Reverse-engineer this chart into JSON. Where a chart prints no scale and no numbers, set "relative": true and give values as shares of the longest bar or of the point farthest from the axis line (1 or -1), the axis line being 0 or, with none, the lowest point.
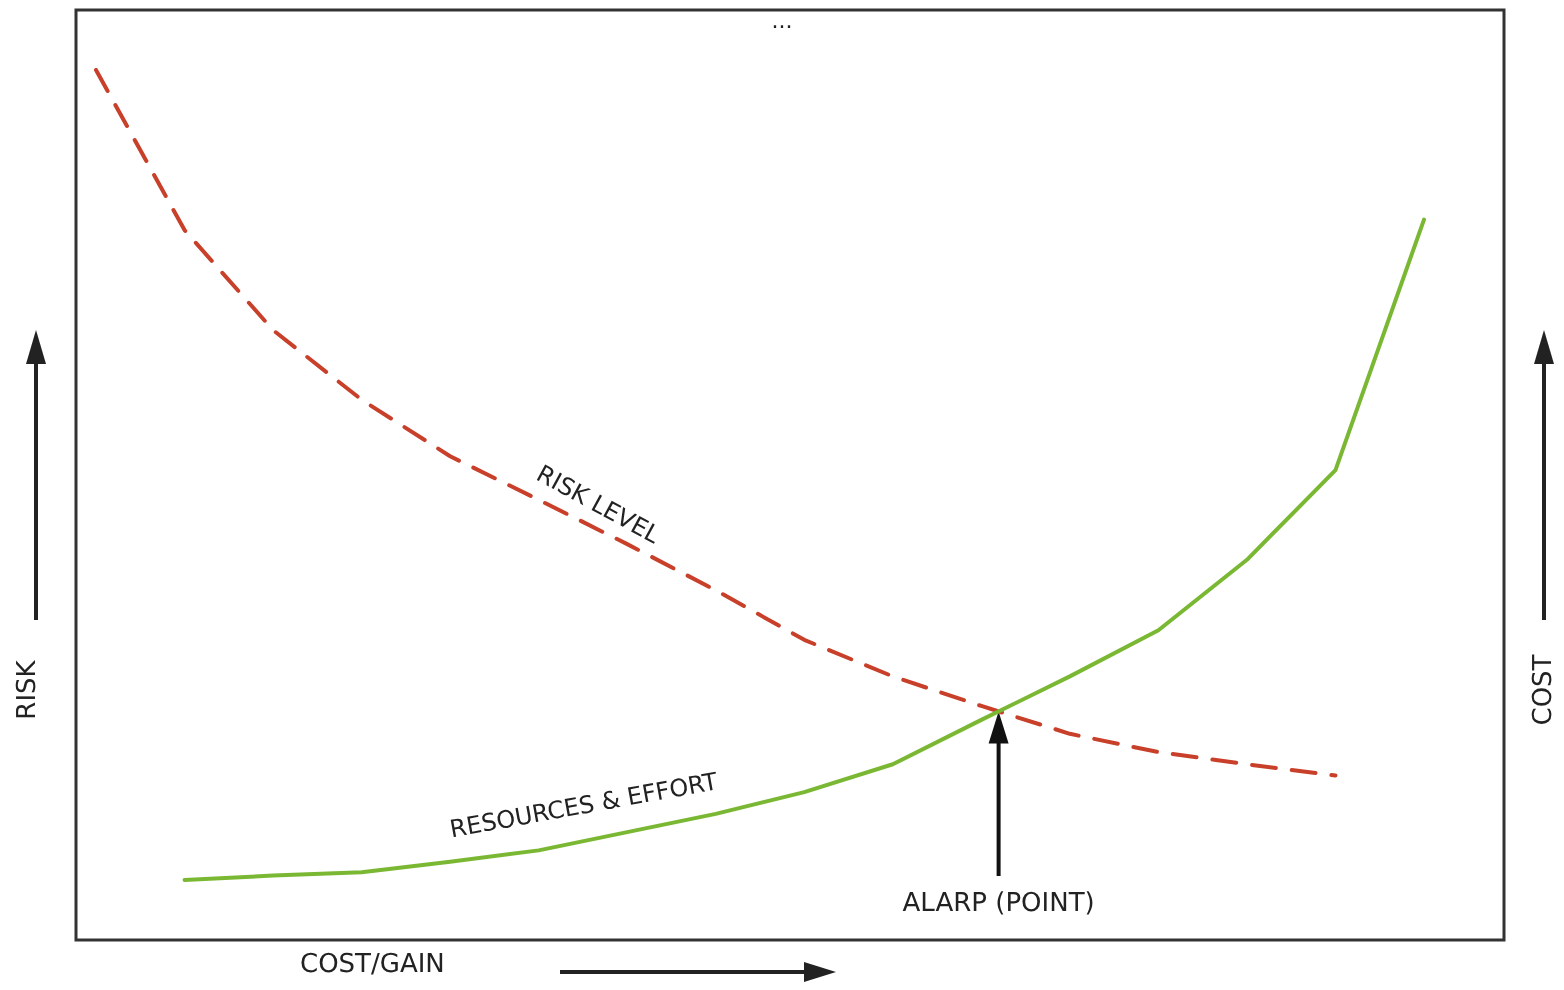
{
  "chart_data": {
    "type": "line",
    "title": "...",
    "xlabel": "COST/GAIN",
    "ylabel": "RISK",
    "y2label": "COST",
    "relative": true,
    "legend": false,
    "grid": false,
    "marker": "none",
    "categories": [
      null,
      null,
      null,
      null,
      null,
      null,
      null,
      null,
      null,
      null,
      null,
      null,
      null,
      null,
      null,
      null
    ],
    "series": [
      {
        "name": "RISK LEVEL",
        "color": "#c8402a",
        "line_style": "dashed",
        "values": [
          1,
          0.816,
          0.701,
          0.621,
          0.556,
          0.506,
          0.455,
          0.402,
          0.345,
          0.303,
          0.269,
          0.237,
          0.216,
          0.202,
          0.189,
          null
        ]
      },
      {
        "name": "RESOURCES & EFFORT",
        "color": "#7ab833",
        "line_style": "solid",
        "values": [
          null,
          0.069,
          0.074,
          0.078,
          0.09,
          0.103,
          0.124,
          0.145,
          0.17,
          0.202,
          0.253,
          0.303,
          0.356,
          0.437,
          0.54,
          0.828
        ]
      }
    ],
    "annotations": [
      "ALARP (POINT)"
    ]
  }
}
